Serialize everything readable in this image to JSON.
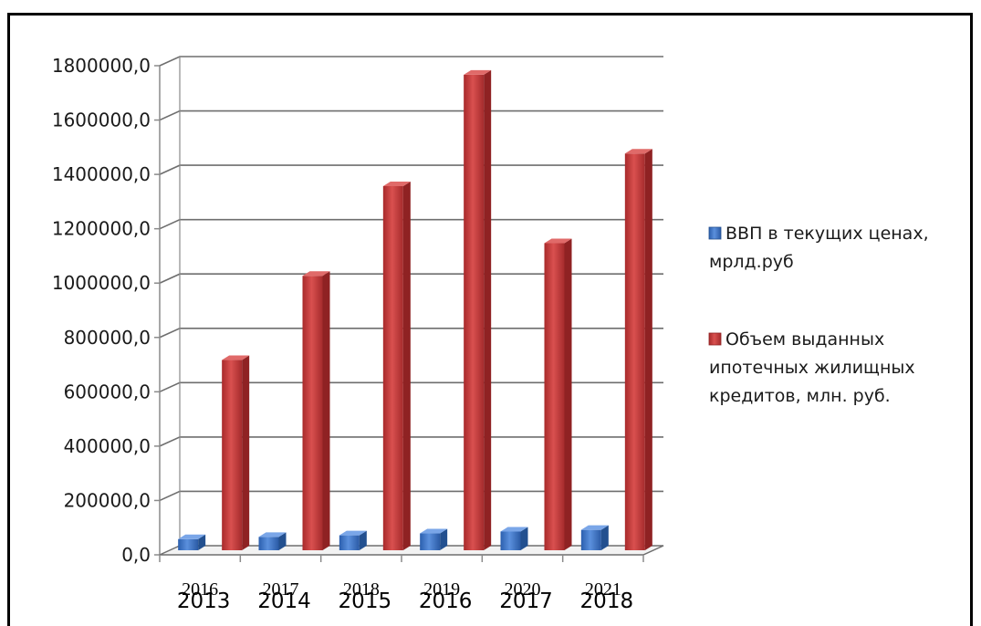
{
  "chart_data": {
    "type": "bar",
    "categories": [
      "2013",
      "2014",
      "2015",
      "2016",
      "2017",
      "2018"
    ],
    "categories_overlay": [
      "2016",
      "2017",
      "2018",
      "2019",
      "2020",
      "2021"
    ],
    "series": [
      {
        "name": "ВВП в текущих ценах, мрлд.руб",
        "name_lines": [
          "ВВП в текущих ценах,",
          "мрлд.руб"
        ],
        "color": "#3f74c4",
        "values": [
          41000,
          49000,
          55000,
          62000,
          69000,
          75000
        ]
      },
      {
        "name": "Объем выданных ипотечных жилищных кредитов, млн. руб.",
        "name_lines": [
          "Объем выданных",
          "ипотечных жилищных",
          "кредитов, млн. руб."
        ],
        "color": "#c0393a",
        "values": [
          700000,
          1010000,
          1340000,
          1750000,
          1130000,
          1460000
        ]
      }
    ],
    "yticks": [
      "0,0",
      "200000,0",
      "400000,0",
      "600000,0",
      "800000,0",
      "1000000,0",
      "1200000,0",
      "1400000,0",
      "1600000,0",
      "1800000,0"
    ],
    "ylim": [
      0,
      1800000
    ],
    "grid": true,
    "legend_position": "right",
    "title": "",
    "xlabel": "",
    "ylabel": ""
  }
}
